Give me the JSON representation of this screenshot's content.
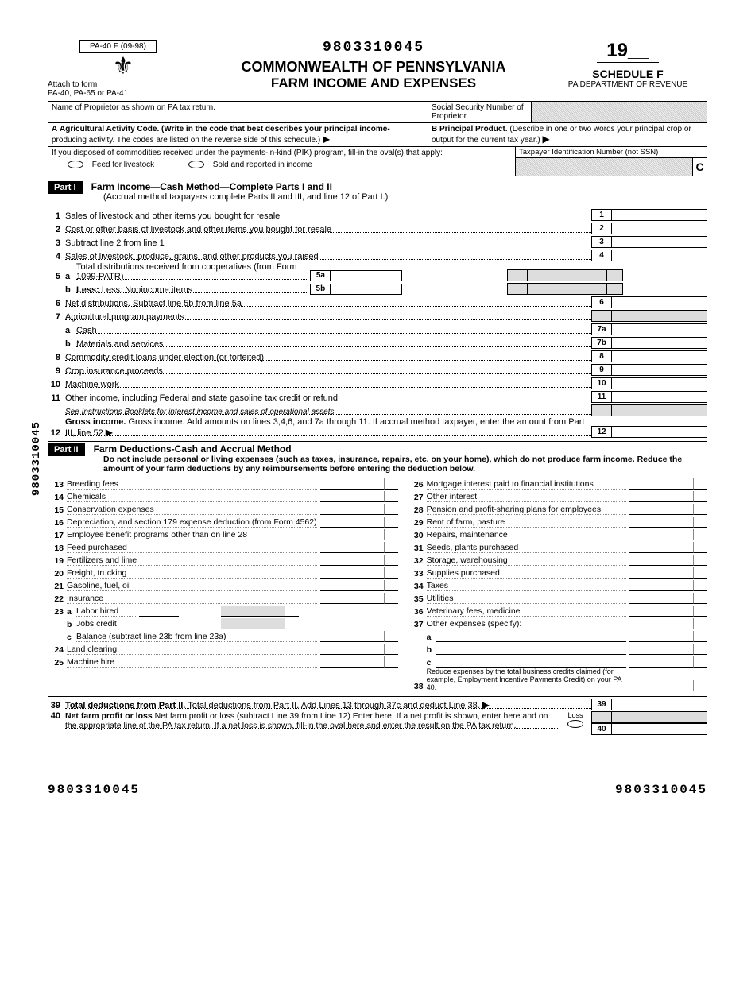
{
  "form_code": "PA-40 F (09-98)",
  "attach_text": "Attach to form",
  "attach_forms": "PA-40, PA-65 or PA-41",
  "ocr_top": "9803310045",
  "title_line1": "COMMONWEALTH OF PENNSYLVANIA",
  "title_line2": "FARM INCOME AND EXPENSES",
  "year_prefix": "19",
  "schedule": "SCHEDULE F",
  "department": "PA DEPARTMENT OF REVENUE",
  "name_prop_label": "Name of Proprietor as shown on PA tax return.",
  "ssn_label": "Social Security Number of Proprietor",
  "section_a_label": "A",
  "section_a_text1": "Agricultural Activity Code. (Write in the code that best describes your principal income-",
  "section_a_text2": "producing activity. The codes are listed on the reverse side of this schedule.)",
  "section_b_label": "B Principal Product.",
  "section_b_text": "(Describe in one or two words your principal crop or output for the current tax year.)",
  "pik_text": "If you disposed of commodities received under the payments-in-kind (PIK) program, fill-in the oval(s) that apply:",
  "pik_opt1": "Feed for livestock",
  "pik_opt2": "Sold and reported in income",
  "tin_label": "Taxpayer Identification Number (not SSN)",
  "tin_suffix": "C",
  "part1_label": "Part I",
  "part1_title": "Farm Income—Cash Method—Complete Parts I and II",
  "part1_note": "(Accrual method taxpayers complete Parts II and III, and line 12 of Part I.)",
  "lines_p1": [
    {
      "n": "1",
      "t": "Sales of livestock and other items you bought for resale",
      "box": "1"
    },
    {
      "n": "2",
      "t": "Cost or other basis of livestock and other items you bought for resale",
      "box": "2"
    },
    {
      "n": "3",
      "t": "Subtract line 2 from line 1",
      "box": "3"
    },
    {
      "n": "4",
      "t": "Sales of livestock, produce, grains, and other products you raised",
      "box": "4"
    }
  ],
  "line5a_n": "5",
  "line5a_s": "a",
  "line5a_t": "Total distributions received from cooperatives (from Form 1099-PATR)",
  "line5a_box": "5a",
  "line5b_s": "b",
  "line5b_t": "Less: Nonincome items",
  "line5b_box": "5b",
  "line6_n": "6",
  "line6_t": "Net distributions. Subtract line 5b from line 5a",
  "line6_box": "6",
  "line7_n": "7",
  "line7_t": "Agricultural program payments:",
  "line7a_s": "a",
  "line7a_t": "Cash",
  "line7a_box": "7a",
  "line7b_s": "b",
  "line7b_t": "Materials and services",
  "line7b_box": "7b",
  "line8_n": "8",
  "line8_t": "Commodity credit loans under election (or forfeited)",
  "line8_box": "8",
  "line9_n": "9",
  "line9_t": "Crop insurance proceeds",
  "line9_box": "9",
  "line10_n": "10",
  "line10_t": "Machine work",
  "line10_box": "10",
  "line11_n": "11",
  "line11_t": "Other income, including Federal and state gasoline tax credit or refund",
  "line11_box": "11",
  "line11_note": "See Instructions Booklets for interest income and sales of operational assets.",
  "line12_n": "12",
  "line12_t": "Gross income. Add amounts on lines 3,4,6, and 7a through 11. If accrual method taxpayer, enter the amount from Part III, line 52",
  "line12_box": "12",
  "part2_label": "Part II",
  "part2_title": "Farm Deductions-Cash and Accrual Method",
  "part2_note": "Do not include personal or living expenses (such as taxes, insurance, repairs, etc. on your home), which do not produce farm income. Reduce the amount of your farm deductions by any reimbursements before entering the deduction below.",
  "ded_left": [
    {
      "n": "13",
      "t": "Breeding fees"
    },
    {
      "n": "14",
      "t": "Chemicals"
    },
    {
      "n": "15",
      "t": "Conservation expenses"
    },
    {
      "n": "16",
      "t": "Depreciation, and section 179 expense deduction (from Form 4562)"
    },
    {
      "n": "17",
      "t": "Employee benefit programs other than on line 28"
    },
    {
      "n": "18",
      "t": "Feed purchased"
    },
    {
      "n": "19",
      "t": "Fertilizers and lime"
    },
    {
      "n": "20",
      "t": "Freight, trucking"
    },
    {
      "n": "21",
      "t": "Gasoline, fuel, oil"
    },
    {
      "n": "22",
      "t": "Insurance"
    }
  ],
  "ded23_n": "23",
  "ded23a_s": "a",
  "ded23a_t": "Labor hired",
  "ded23b_s": "b",
  "ded23b_t": "Jobs credit",
  "ded23c_s": "c",
  "ded23c_t": "Balance (subtract line 23b from line 23a)",
  "ded24_n": "24",
  "ded24_t": "Land clearing",
  "ded25_n": "25",
  "ded25_t": "Machine hire",
  "ded_right": [
    {
      "n": "26",
      "t": "Mortgage interest paid to financial institutions"
    },
    {
      "n": "27",
      "t": "Other interest"
    },
    {
      "n": "28",
      "t": "Pension and profit-sharing plans for employees"
    },
    {
      "n": "29",
      "t": "Rent of farm, pasture"
    },
    {
      "n": "30",
      "t": "Repairs, maintenance"
    },
    {
      "n": "31",
      "t": "Seeds, plants purchased"
    },
    {
      "n": "32",
      "t": "Storage, warehousing"
    },
    {
      "n": "33",
      "t": "Supplies purchased"
    },
    {
      "n": "34",
      "t": "Taxes"
    },
    {
      "n": "35",
      "t": "Utilities"
    },
    {
      "n": "36",
      "t": "Veterinary fees, medicine"
    },
    {
      "n": "37",
      "t": "Other expenses (specify):"
    }
  ],
  "ded37a_s": "a",
  "ded37b_s": "b",
  "ded37c_s": "c",
  "ded38_n": "38",
  "ded38_t": "Reduce expenses by the total business credits claimed (for example, Employment Incentive Payments Credit) on your PA 40.",
  "line39_n": "39",
  "line39_t": "Total deductions from Part II. Add Lines 13 through 37c and deduct Line 38.",
  "line39_box": "39",
  "line40_n": "40",
  "line40_t": "Net farm profit or loss (subtract Line 39 from Line 12) Enter here. If a net profit is shown, enter here and on the appropriate line of the PA tax return. If a net loss is shown, fill-in the oval here and enter the result on the PA tax return.",
  "line40_box": "40",
  "loss_label": "Loss",
  "ocr_bottom_l": "9803310045",
  "ocr_bottom_r": "9803310045",
  "vertical_text": "9803310045"
}
